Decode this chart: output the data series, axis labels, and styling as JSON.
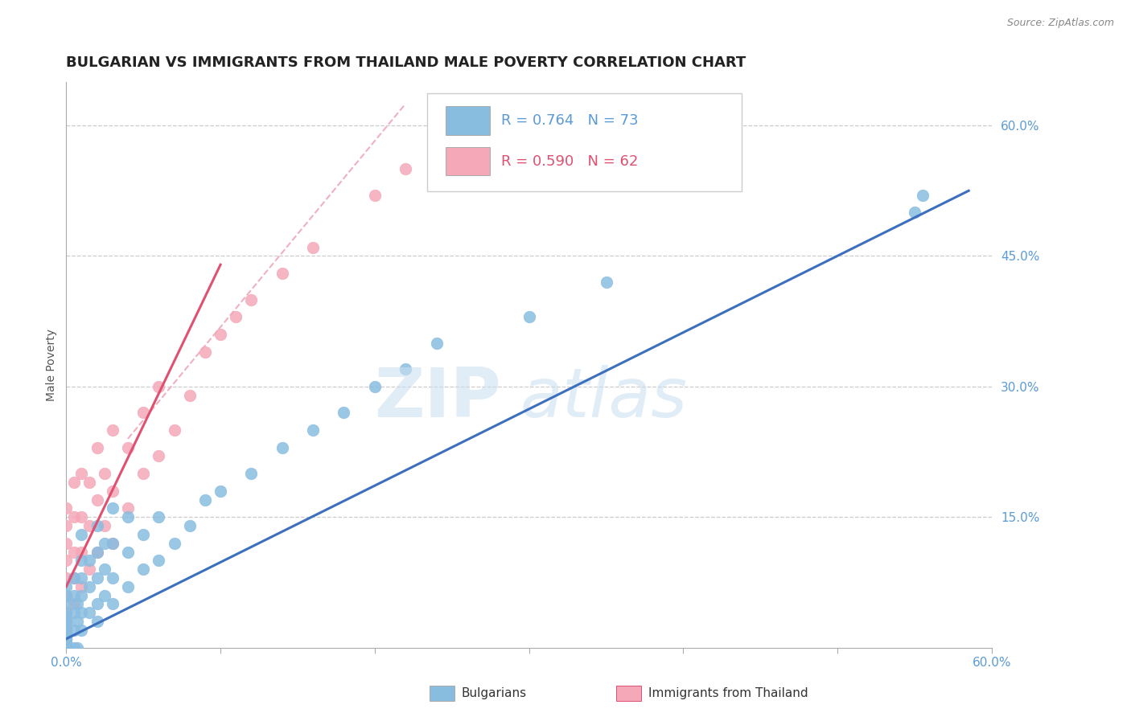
{
  "title": "BULGARIAN VS IMMIGRANTS FROM THAILAND MALE POVERTY CORRELATION CHART",
  "source": "Source: ZipAtlas.com",
  "ylabel": "Male Poverty",
  "xlim": [
    0.0,
    0.6
  ],
  "ylim": [
    0.0,
    0.65
  ],
  "xtick_positions": [
    0.0,
    0.1,
    0.2,
    0.3,
    0.4,
    0.5,
    0.6
  ],
  "xtick_labels": [
    "0.0%",
    "",
    "",
    "",
    "",
    "",
    "60.0%"
  ],
  "yticks_right": [
    0.15,
    0.3,
    0.45,
    0.6
  ],
  "ytick_labels_right": [
    "15.0%",
    "30.0%",
    "45.0%",
    "60.0%"
  ],
  "grid_color": "#cccccc",
  "blue_color": "#89bde0",
  "pink_color": "#f4a8b8",
  "blue_line_color": "#3c6fbe",
  "pink_line_color": "#e05070",
  "pink_dash_color": "#f0b0c0",
  "right_tick_color": "#5b9bd5",
  "blue_line": {
    "x0": 0.0,
    "y0": 0.01,
    "x1": 0.585,
    "y1": 0.525
  },
  "pink_line": {
    "x0": 0.0,
    "y0": 0.07,
    "x1": 0.1,
    "y1": 0.44
  },
  "pink_dash_line": {
    "x0": 0.04,
    "y0": 0.24,
    "x1": 0.22,
    "y1": 0.625
  },
  "blue_x": [
    0.0,
    0.0,
    0.0,
    0.0,
    0.0,
    0.0,
    0.0,
    0.0,
    0.0,
    0.0,
    0.0,
    0.0,
    0.0,
    0.0,
    0.0,
    0.0,
    0.0,
    0.0,
    0.0,
    0.0,
    0.005,
    0.005,
    0.005,
    0.005,
    0.005,
    0.007,
    0.007,
    0.007,
    0.01,
    0.01,
    0.01,
    0.01,
    0.01,
    0.01,
    0.015,
    0.015,
    0.015,
    0.02,
    0.02,
    0.02,
    0.02,
    0.02,
    0.025,
    0.025,
    0.025,
    0.03,
    0.03,
    0.03,
    0.03,
    0.04,
    0.04,
    0.04,
    0.05,
    0.05,
    0.06,
    0.06,
    0.07,
    0.08,
    0.09,
    0.1,
    0.12,
    0.14,
    0.16,
    0.18,
    0.2,
    0.22,
    0.24,
    0.3,
    0.35,
    0.55,
    0.555
  ],
  "blue_y": [
    0.0,
    0.0,
    0.0,
    0.0,
    0.005,
    0.005,
    0.01,
    0.01,
    0.01,
    0.015,
    0.015,
    0.02,
    0.02,
    0.025,
    0.03,
    0.035,
    0.04,
    0.05,
    0.06,
    0.07,
    0.0,
    0.02,
    0.04,
    0.06,
    0.08,
    0.0,
    0.03,
    0.05,
    0.02,
    0.04,
    0.06,
    0.08,
    0.1,
    0.13,
    0.04,
    0.07,
    0.1,
    0.03,
    0.05,
    0.08,
    0.11,
    0.14,
    0.06,
    0.09,
    0.12,
    0.05,
    0.08,
    0.12,
    0.16,
    0.07,
    0.11,
    0.15,
    0.09,
    0.13,
    0.1,
    0.15,
    0.12,
    0.14,
    0.17,
    0.18,
    0.2,
    0.23,
    0.25,
    0.27,
    0.3,
    0.32,
    0.35,
    0.38,
    0.42,
    0.5,
    0.52
  ],
  "pink_x": [
    0.0,
    0.0,
    0.0,
    0.0,
    0.0,
    0.0,
    0.0,
    0.0,
    0.0,
    0.0,
    0.005,
    0.005,
    0.005,
    0.005,
    0.005,
    0.01,
    0.01,
    0.01,
    0.01,
    0.015,
    0.015,
    0.015,
    0.02,
    0.02,
    0.02,
    0.025,
    0.025,
    0.03,
    0.03,
    0.03,
    0.04,
    0.04,
    0.05,
    0.05,
    0.06,
    0.06,
    0.07,
    0.08,
    0.09,
    0.1,
    0.11,
    0.12,
    0.14,
    0.16,
    0.2,
    0.22
  ],
  "pink_y": [
    0.01,
    0.02,
    0.03,
    0.04,
    0.06,
    0.08,
    0.1,
    0.12,
    0.14,
    0.16,
    0.05,
    0.08,
    0.11,
    0.15,
    0.19,
    0.07,
    0.11,
    0.15,
    0.2,
    0.09,
    0.14,
    0.19,
    0.11,
    0.17,
    0.23,
    0.14,
    0.2,
    0.12,
    0.18,
    0.25,
    0.16,
    0.23,
    0.2,
    0.27,
    0.22,
    0.3,
    0.25,
    0.29,
    0.34,
    0.36,
    0.38,
    0.4,
    0.43,
    0.46,
    0.52,
    0.55
  ],
  "title_fontsize": 13,
  "axis_label_fontsize": 10,
  "tick_fontsize": 11,
  "legend_fontsize": 13,
  "background_color": "#ffffff",
  "title_color": "#222222",
  "source_color": "#888888"
}
